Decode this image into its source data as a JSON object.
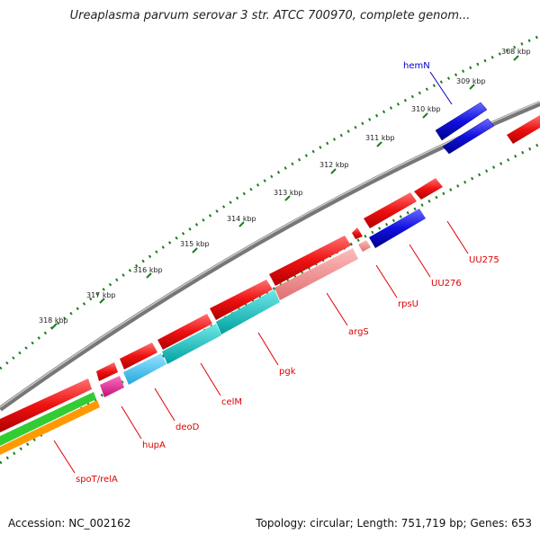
{
  "title": "Ureaplasma parvum serovar 3 str. ATCC 700970, complete genom...",
  "footer": {
    "accession": "Accession: NC_002162",
    "summary": "Topology: circular; Length: 751,719 bp; Genes: 653"
  },
  "scale": {
    "ticks": [
      "308 kbp",
      "309 kbp",
      "310 kbp",
      "311 kbp",
      "312 kbp",
      "313 kbp",
      "314 kbp",
      "315 kbp",
      "316 kbp",
      "317 kbp",
      "318 kbp"
    ]
  },
  "genes": {
    "hemN": "hemN",
    "UU275": "UU275",
    "UU276": "UU276",
    "rpsU": "rpsU",
    "argS": "argS",
    "pgk": "pgk",
    "celM": "celM",
    "deoD": "deoD",
    "hupA": "hupA",
    "spoT": "spoT/relA"
  },
  "colors": {
    "backbone": "#8c8c8c",
    "scale_dots": "#1e7d1e",
    "label_red": "#e00000",
    "label_blue": "#0000cc",
    "cds_red": "#ee1111",
    "cds_blue": "#1010e0",
    "rna_pink": "#f08888",
    "teal": "#11c4c4",
    "light_blue": "#44c8ee",
    "magenta": "#e02090",
    "green": "#33cc33",
    "orange": "#ff9900"
  }
}
